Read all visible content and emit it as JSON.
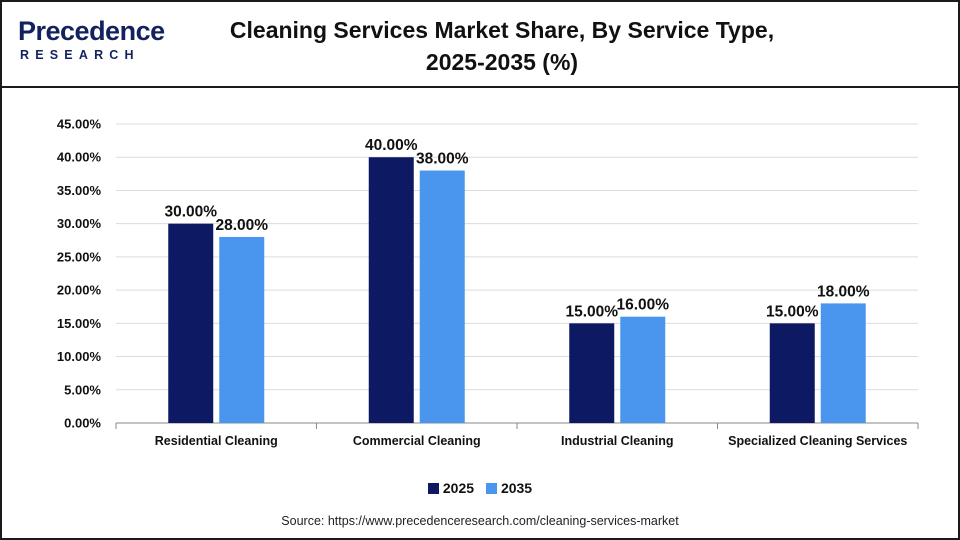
{
  "header": {
    "logo_word": "Precedence",
    "logo_sub": "RESEARCH",
    "title_line1": "Cleaning Services Market Share, By Service Type,",
    "title_line2": "2025-2035 (%)"
  },
  "colors": {
    "series_2025": "#0d1a63",
    "series_2035": "#4a96ef",
    "logo": "#14215f",
    "logo_accent": "#3a7bd5"
  },
  "chart_data": {
    "type": "bar",
    "title": "Cleaning Services Market Share, By Service Type, 2025-2035 (%)",
    "categories": [
      "Residential Cleaning",
      "Commercial Cleaning",
      "Industrial Cleaning",
      "Specialized Cleaning Services"
    ],
    "series": [
      {
        "name": "2025",
        "values": [
          30,
          40,
          15,
          15
        ],
        "labels": [
          "30.00%",
          "40.00%",
          "15.00%",
          "15.00%"
        ]
      },
      {
        "name": "2035",
        "values": [
          28,
          38,
          16,
          18
        ],
        "labels": [
          "28.00%",
          "38.00%",
          "16.00%",
          "18.00%"
        ]
      }
    ],
    "ylim": [
      0,
      45
    ],
    "yticks": [
      0,
      5,
      10,
      15,
      20,
      25,
      30,
      35,
      40,
      45
    ],
    "ytick_labels": [
      "0.00%",
      "5.00%",
      "10.00%",
      "15.00%",
      "20.00%",
      "25.00%",
      "30.00%",
      "35.00%",
      "40.00%",
      "45.00%"
    ],
    "grid": true,
    "legend_position": "bottom-center"
  },
  "legend": {
    "items": [
      "2025",
      "2035"
    ]
  },
  "source": "Source: https://www.precedenceresearch.com/cleaning-services-market"
}
